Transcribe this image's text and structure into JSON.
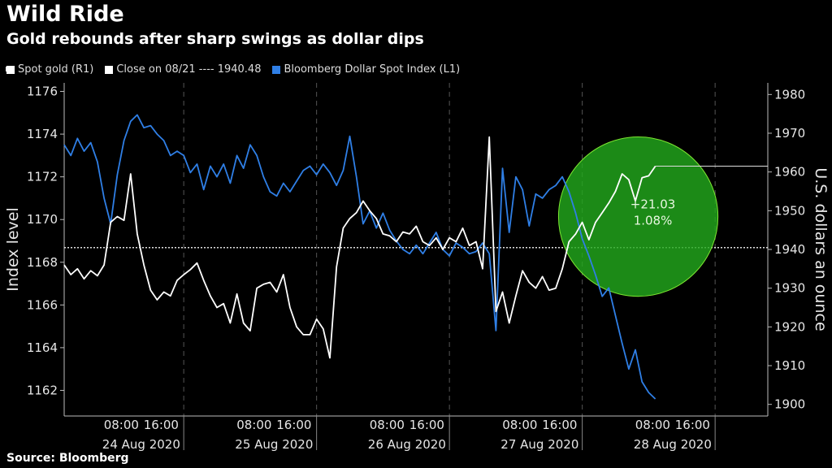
{
  "chart_data": {
    "type": "line",
    "title": "Wild Ride",
    "subtitle": "Gold rebounds after sharp swings as dollar dips",
    "source": "Source: Bloomberg",
    "legend": [
      {
        "label": "Spot gold (R1)",
        "color": "#ffffff"
      },
      {
        "label": "Close on 08/21 ---- 1940.48",
        "color": "#ffffff"
      },
      {
        "label": "Bloomberg Dollar Spot Index (L1)",
        "color": "#2f7fe6"
      }
    ],
    "ylabel_left": "Index level",
    "ylabel_right": "U.S. dollars an ounce",
    "ylim_left": [
      1160.8,
      1176.4
    ],
    "ylim_right": [
      1897,
      1983
    ],
    "yticks_left": [
      "1162",
      "1164",
      "1166",
      "1168",
      "1170",
      "1172",
      "1174",
      "1176"
    ],
    "yticks_right": [
      "1900",
      "1910",
      "1920",
      "1930",
      "1940",
      "1950",
      "1960",
      "1970",
      "1980"
    ],
    "x_time_labels": [
      "08:00",
      "16:00"
    ],
    "x_day_labels": [
      "24 Aug 2020",
      "25 Aug 2020",
      "26 Aug 2020",
      "27 Aug 2020",
      "28 Aug 2020"
    ],
    "xlim": [
      0,
      5
    ],
    "reference_line": {
      "label": "Close on 08/21",
      "value": 1940.48
    },
    "annotation": {
      "change": "+21.03",
      "percent": "1.08%",
      "color": "#7ee832"
    },
    "series": [
      {
        "name": "Bloomberg Dollar Spot Index (L1)",
        "axis": "left",
        "color": "#2f7fe6",
        "x": [
          0.0,
          0.05,
          0.1,
          0.15,
          0.2,
          0.25,
          0.3,
          0.35,
          0.4,
          0.45,
          0.5,
          0.55,
          0.6,
          0.65,
          0.7,
          0.75,
          0.8,
          0.85,
          0.9,
          0.95,
          1.0,
          1.05,
          1.1,
          1.15,
          1.2,
          1.25,
          1.3,
          1.35,
          1.4,
          1.45,
          1.5,
          1.55,
          1.6,
          1.65,
          1.7,
          1.75,
          1.8,
          1.85,
          1.9,
          1.95,
          2.0,
          2.05,
          2.1,
          2.15,
          2.2,
          2.25,
          2.3,
          2.35,
          2.4,
          2.45,
          2.5,
          2.55,
          2.6,
          2.65,
          2.7,
          2.75,
          2.8,
          2.85,
          2.9,
          2.95,
          3.0,
          3.05,
          3.1,
          3.15,
          3.2,
          3.25,
          3.3,
          3.35,
          3.4,
          3.45,
          3.5,
          3.55,
          3.6,
          3.65,
          3.7,
          3.75,
          3.8,
          3.85,
          3.9,
          3.95,
          4.0,
          4.05,
          4.1,
          4.15,
          4.2,
          4.25,
          4.3,
          4.35,
          4.4,
          4.45
        ],
        "values": [
          1173.5,
          1173.0,
          1173.8,
          1173.2,
          1173.6,
          1172.7,
          1171.0,
          1169.8,
          1172.1,
          1173.7,
          1174.6,
          1174.9,
          1174.3,
          1174.4,
          1174.0,
          1173.7,
          1173.0,
          1173.2,
          1173.0,
          1172.2,
          1172.6,
          1171.4,
          1172.5,
          1172.0,
          1172.6,
          1171.7,
          1173.0,
          1172.4,
          1173.5,
          1173.0,
          1172.0,
          1171.3,
          1171.1,
          1171.7,
          1171.3,
          1171.8,
          1172.3,
          1172.5,
          1172.1,
          1172.6,
          1172.2,
          1171.6,
          1172.3,
          1173.9,
          1172.0,
          1169.8,
          1170.4,
          1169.6,
          1170.3,
          1169.5,
          1169.0,
          1168.6,
          1168.4,
          1168.8,
          1168.4,
          1168.9,
          1169.4,
          1168.6,
          1168.3,
          1168.9,
          1168.7,
          1168.4,
          1168.5,
          1168.9,
          1168.4,
          1164.8,
          1172.4,
          1169.4,
          1172.0,
          1171.4,
          1169.7,
          1171.2,
          1171.0,
          1171.4,
          1171.6,
          1172.0,
          1171.3,
          1170.3,
          1169.1,
          1168.3,
          1167.4,
          1166.4,
          1166.8,
          1165.5,
          1164.2,
          1163.0,
          1163.9,
          1162.4,
          1161.9,
          1161.6
        ]
      },
      {
        "name": "Spot gold (R1)",
        "axis": "right",
        "color": "#ffffff",
        "x": [
          0.0,
          0.05,
          0.1,
          0.15,
          0.2,
          0.25,
          0.3,
          0.35,
          0.4,
          0.45,
          0.5,
          0.55,
          0.6,
          0.65,
          0.7,
          0.75,
          0.8,
          0.85,
          0.9,
          0.95,
          1.0,
          1.05,
          1.1,
          1.15,
          1.2,
          1.25,
          1.3,
          1.35,
          1.4,
          1.45,
          1.5,
          1.55,
          1.6,
          1.65,
          1.7,
          1.75,
          1.8,
          1.85,
          1.9,
          1.95,
          2.0,
          2.05,
          2.1,
          2.15,
          2.2,
          2.25,
          2.3,
          2.35,
          2.4,
          2.45,
          2.5,
          2.55,
          2.6,
          2.65,
          2.7,
          2.75,
          2.8,
          2.85,
          2.9,
          2.95,
          3.0,
          3.05,
          3.1,
          3.15,
          3.2,
          3.25,
          3.3,
          3.35,
          3.4,
          3.45,
          3.5,
          3.55,
          3.6,
          3.65,
          3.7,
          3.75,
          3.8,
          3.85,
          3.9,
          3.95,
          4.0,
          4.05,
          4.1,
          4.15,
          4.2,
          4.25,
          4.3,
          4.35,
          4.4,
          4.45
        ],
        "values": [
          1936.0,
          1933.5,
          1935.0,
          1932.4,
          1934.5,
          1933.2,
          1936.0,
          1947.0,
          1948.5,
          1947.5,
          1959.5,
          1944.0,
          1936.0,
          1929.5,
          1927.0,
          1929.0,
          1928.0,
          1932.0,
          1933.5,
          1934.8,
          1936.5,
          1932.0,
          1928.0,
          1925.0,
          1926.0,
          1921.0,
          1928.5,
          1921.0,
          1919.0,
          1930.0,
          1931.0,
          1931.5,
          1929.0,
          1933.5,
          1925.0,
          1920.0,
          1918.0,
          1918.0,
          1922.0,
          1919.5,
          1912.0,
          1935.5,
          1945.5,
          1948.0,
          1949.5,
          1952.5,
          1950.0,
          1948.0,
          1944.0,
          1943.5,
          1942.0,
          1944.5,
          1944.0,
          1946.0,
          1942.0,
          1941.0,
          1943.0,
          1940.0,
          1943.0,
          1942.0,
          1945.5,
          1941.0,
          1942.0,
          1935.0,
          1969.0,
          1924.0,
          1929.0,
          1921.0,
          1928.0,
          1934.5,
          1931.5,
          1930.0,
          1933.0,
          1929.5,
          1930.0,
          1935.0,
          1942.0,
          1944.0,
          1947.0,
          1942.5,
          1947.0,
          1949.5,
          1952.0,
          1955.0,
          1959.5,
          1958.0,
          1952.5,
          1958.5,
          1959.0,
          1961.5
        ]
      }
    ]
  }
}
